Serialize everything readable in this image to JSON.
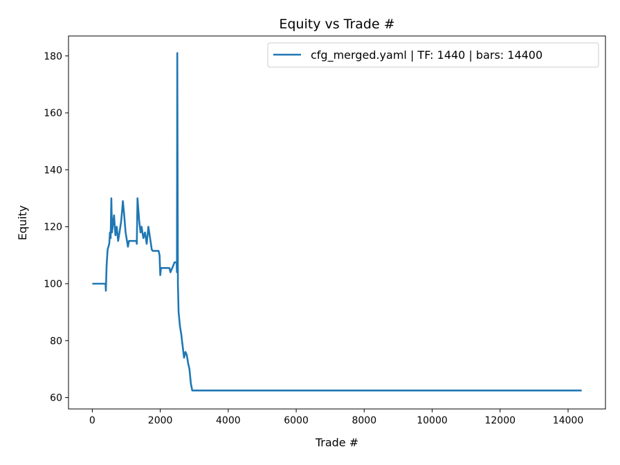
{
  "chart_data": {
    "type": "line",
    "title": "Equity vs Trade #",
    "xlabel": "Trade #",
    "ylabel": "Equity",
    "xlim": [
      -700,
      15100
    ],
    "ylim": [
      56,
      187
    ],
    "xticks": [
      0,
      2000,
      4000,
      6000,
      8000,
      10000,
      12000,
      14000
    ],
    "yticks": [
      60,
      80,
      100,
      120,
      140,
      160,
      180
    ],
    "grid": false,
    "legend_position": "top-right",
    "series": [
      {
        "name": "cfg_merged.yaml | TF: 1440 | bars: 14400",
        "color": "#1f77b4",
        "x": [
          0,
          390,
          400,
          420,
          450,
          500,
          520,
          540,
          560,
          580,
          620,
          640,
          680,
          720,
          760,
          800,
          850,
          880,
          900,
          940,
          980,
          1050,
          1080,
          1300,
          1310,
          1330,
          1380,
          1420,
          1450,
          1500,
          1550,
          1600,
          1650,
          1700,
          1750,
          1780,
          1950,
          1980,
          2000,
          2020,
          2270,
          2300,
          2370,
          2420,
          2480,
          2490,
          2500,
          2520,
          2540,
          2580,
          2620,
          2640,
          2700,
          2740,
          2780,
          2820,
          2860,
          2900,
          2940,
          14400
        ],
        "y": [
          100,
          100,
          97.5,
          106,
          112,
          114,
          118,
          116,
          130,
          118,
          122,
          124,
          117,
          120,
          115,
          118,
          122,
          126,
          129,
          124,
          118,
          113,
          115,
          115,
          114,
          130,
          122,
          118,
          120,
          116,
          118,
          114,
          120,
          116,
          112,
          111.5,
          111.5,
          110,
          103,
          105.5,
          105.5,
          104,
          106,
          107.5,
          107.5,
          104,
          181,
          100,
          90,
          85,
          82,
          80,
          74,
          76,
          75,
          72,
          70,
          65,
          62.5,
          62.5
        ]
      }
    ]
  }
}
